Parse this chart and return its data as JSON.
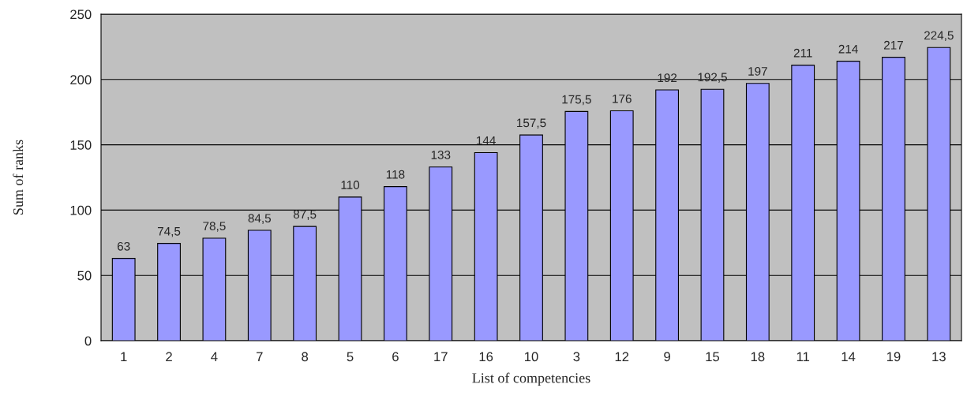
{
  "chart_data": {
    "type": "bar",
    "xlabel": "List of competencies",
    "ylabel": "Sum of ranks",
    "categories": [
      "1",
      "2",
      "4",
      "7",
      "8",
      "5",
      "6",
      "17",
      "16",
      "10",
      "3",
      "12",
      "9",
      "15",
      "18",
      "11",
      "14",
      "19",
      "13"
    ],
    "values": [
      63,
      74.5,
      78.5,
      84.5,
      87.5,
      110,
      118,
      133,
      144,
      157.5,
      175.5,
      176,
      192,
      192.5,
      197,
      211,
      214,
      217,
      224.5
    ],
    "value_labels": [
      "63",
      "74,5",
      "78,5",
      "84,5",
      "87,5",
      "110",
      "118",
      "133",
      "144",
      "157,5",
      "175,5",
      "176",
      "192",
      "192,5",
      "197",
      "211",
      "214",
      "217",
      "224,5"
    ],
    "color": "#9999ff",
    "ylim": [
      0,
      250
    ],
    "yticks": [
      0,
      50,
      100,
      150,
      200,
      250
    ],
    "grid": "y"
  }
}
